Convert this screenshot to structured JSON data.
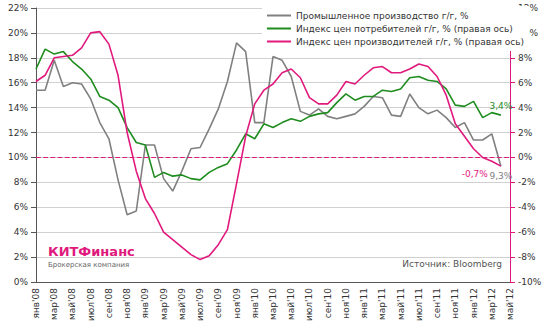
{
  "chart_data": {
    "type": "line",
    "categories": [
      "янв'08",
      null,
      "мар'08",
      null,
      "май'08",
      null,
      "июл'08",
      null,
      "сен'08",
      null,
      "ноя'08",
      null,
      "янв'09",
      null,
      "мар'09",
      null,
      "май'09",
      null,
      "июл'09",
      null,
      "сен'09",
      null,
      "ноя'09",
      null,
      "янв'10",
      null,
      "мар'10",
      null,
      "май'10",
      null,
      "июл'10",
      null,
      "сен'10",
      null,
      "ноя'10",
      null,
      "янв'11",
      null,
      "мар'11",
      null,
      "май'11",
      null,
      "июл'11",
      null,
      "сен'11",
      null,
      "ноя'11",
      null,
      "янв'12",
      null,
      "мар'12",
      null,
      "май'12"
    ],
    "series": [
      {
        "name": "Промышленное производство г/г, %",
        "color": "#808080",
        "axis": "y",
        "values": [
          15.4,
          15.4,
          17.8,
          15.7,
          16.0,
          15.9,
          14.7,
          12.8,
          11.5,
          8.2,
          5.4,
          5.7,
          11.0,
          11.0,
          8.3,
          7.3,
          8.9,
          10.7,
          10.8,
          12.3,
          13.9,
          16.1,
          19.2,
          18.5,
          12.8,
          12.8,
          18.1,
          17.8,
          16.5,
          13.7,
          13.4,
          13.9,
          13.3,
          13.1,
          13.3,
          13.5,
          14.1,
          14.9,
          14.8,
          13.4,
          13.3,
          15.1,
          14.0,
          13.5,
          13.8,
          13.2,
          12.4,
          12.8,
          11.4,
          11.4,
          11.9,
          9.3,
          null
        ],
        "value_labels": [
          null,
          null,
          null,
          null,
          null,
          null,
          null,
          null,
          null,
          null,
          null,
          null,
          null,
          null,
          null,
          null,
          null,
          null,
          null,
          null,
          null,
          null,
          null,
          null,
          null,
          null,
          null,
          null,
          null,
          null,
          null,
          null,
          null,
          null,
          null,
          null,
          null,
          null,
          null,
          null,
          null,
          null,
          null,
          null,
          null,
          null,
          null,
          null,
          null,
          null,
          null,
          "9,3%",
          null
        ]
      },
      {
        "name": "Индекс цен потребителей г/г, % (правая ось)",
        "color": "#1e8c1e",
        "axis": "y2",
        "values": [
          7.1,
          8.7,
          8.3,
          8.5,
          7.7,
          7.1,
          6.3,
          4.9,
          4.6,
          4.0,
          2.4,
          1.2,
          1.0,
          -1.6,
          -1.2,
          -1.5,
          -1.4,
          -1.7,
          -1.8,
          -1.2,
          -0.8,
          -0.5,
          0.6,
          1.9,
          1.5,
          2.7,
          2.4,
          2.8,
          3.1,
          2.9,
          3.3,
          3.5,
          3.6,
          4.4,
          5.1,
          4.6,
          4.9,
          4.9,
          5.4,
          5.3,
          5.5,
          6.4,
          6.5,
          6.2,
          6.1,
          5.5,
          4.2,
          4.1,
          4.5,
          3.2,
          3.6,
          3.4,
          null
        ],
        "value_labels": [
          null,
          null,
          null,
          null,
          null,
          null,
          null,
          null,
          null,
          null,
          null,
          null,
          null,
          null,
          null,
          null,
          null,
          null,
          null,
          null,
          null,
          null,
          null,
          null,
          null,
          null,
          null,
          null,
          null,
          null,
          null,
          null,
          null,
          null,
          null,
          null,
          null,
          null,
          null,
          null,
          null,
          null,
          null,
          null,
          null,
          null,
          null,
          null,
          null,
          null,
          null,
          "3,4%",
          null
        ]
      },
      {
        "name": "Индекс цен производителей г/г, % (правая ось)",
        "color": "#e0197d",
        "axis": "y2",
        "values": [
          6.1,
          6.6,
          8.0,
          8.1,
          8.2,
          8.8,
          10.0,
          10.1,
          9.1,
          6.6,
          2.0,
          -1.1,
          -3.3,
          -4.5,
          -6.0,
          -6.6,
          -7.2,
          -7.8,
          -8.2,
          -7.9,
          -7.0,
          -5.8,
          -2.1,
          1.7,
          4.3,
          5.4,
          5.9,
          6.8,
          7.1,
          6.4,
          4.8,
          4.3,
          4.3,
          5.0,
          6.1,
          5.9,
          6.6,
          7.2,
          7.3,
          6.8,
          6.8,
          7.1,
          7.5,
          7.3,
          6.5,
          5.0,
          2.7,
          1.7,
          0.7,
          0.0,
          -0.3,
          -0.7,
          null
        ],
        "value_labels": [
          null,
          null,
          null,
          null,
          null,
          null,
          null,
          null,
          null,
          null,
          null,
          null,
          null,
          null,
          null,
          null,
          null,
          null,
          null,
          null,
          null,
          null,
          null,
          null,
          null,
          null,
          null,
          null,
          null,
          null,
          null,
          null,
          null,
          null,
          null,
          null,
          null,
          null,
          null,
          null,
          null,
          null,
          null,
          null,
          null,
          null,
          null,
          null,
          null,
          null,
          null,
          "-0,7%",
          null
        ]
      }
    ],
    "ylim": [
      0,
      22
    ],
    "yticks": [
      {
        "value": 0,
        "label": "0%"
      },
      {
        "value": 2,
        "label": "2%"
      },
      {
        "value": 4,
        "label": "4%"
      },
      {
        "value": 6,
        "label": "6%"
      },
      {
        "value": 8,
        "label": "8%"
      },
      {
        "value": 10,
        "label": "10%"
      },
      {
        "value": 12,
        "label": "12%"
      },
      {
        "value": 14,
        "label": "14%"
      },
      {
        "value": 16,
        "label": "16%"
      },
      {
        "value": 18,
        "label": "18%"
      },
      {
        "value": 20,
        "label": "20%"
      },
      {
        "value": 22,
        "label": "22%"
      }
    ],
    "y2lim": [
      -10,
      12
    ],
    "y2ticks": [
      {
        "value": -10,
        "label": "-10%"
      },
      {
        "value": -8,
        "label": "-8%"
      },
      {
        "value": -6,
        "label": "-6%"
      },
      {
        "value": -4,
        "label": "-4%"
      },
      {
        "value": -2,
        "label": "-2%"
      },
      {
        "value": 0,
        "label": "0%"
      },
      {
        "value": 2,
        "label": "2%"
      },
      {
        "value": 4,
        "label": "4%"
      },
      {
        "value": 6,
        "label": "6%"
      },
      {
        "value": 8,
        "label": "8%"
      },
      {
        "value": 10,
        "label": "10%"
      },
      {
        "value": 12,
        "label": "12%"
      }
    ],
    "reference_line": {
      "value": 10,
      "axis": "y",
      "color": "#e0197d",
      "line_style": "dashed"
    },
    "grid": true,
    "legend": "top",
    "data_labels": true,
    "logo": {
      "text": "КИТФинанс",
      "subtext": "Брокерская компания",
      "color": "#e0197d"
    },
    "source": "Источник: Bloomberg"
  }
}
